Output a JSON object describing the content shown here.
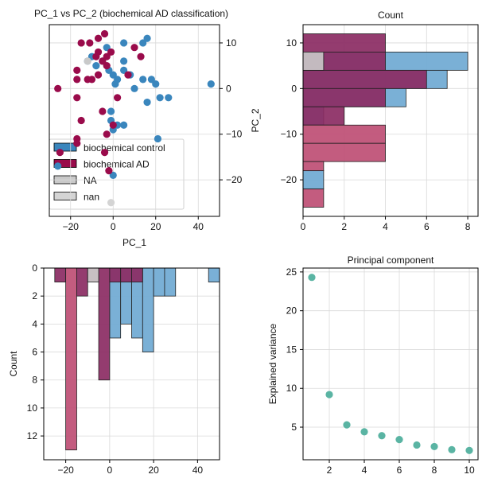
{
  "colors": {
    "control": "#3a86bd",
    "ad": "#9a0b4b",
    "na": "#c9c9c9",
    "nan": "#d4d4d4",
    "control_hist": "#6fa9d2",
    "ad_hist": "#be4e74",
    "ad_hist_dark": "#8b2b63",
    "variance": "#5ab4a3"
  },
  "chart_data": [
    {
      "id": "scatter",
      "type": "scatter",
      "title": "PC_1 vs PC_2 (biochemical AD classification)",
      "xlabel": "PC_1",
      "ylabel": "PC_2",
      "xlim": [
        -30,
        50
      ],
      "ylim": [
        -28,
        14
      ],
      "xticks": [
        -20,
        0,
        20,
        40
      ],
      "yticks": [
        10,
        0,
        -10,
        -20
      ],
      "legend": [
        "biochemical control",
        "biochemical AD",
        "NA",
        "nan"
      ],
      "series": [
        {
          "name": "biochemical control",
          "points": [
            [
              -12,
              6
            ],
            [
              -10,
              7
            ],
            [
              -8,
              5
            ],
            [
              -5,
              6
            ],
            [
              -3,
              9
            ],
            [
              -2,
              4
            ],
            [
              0,
              3
            ],
            [
              1,
              1
            ],
            [
              2,
              2
            ],
            [
              5,
              6
            ],
            [
              5,
              4
            ],
            [
              5,
              10
            ],
            [
              8,
              3
            ],
            [
              10,
              0
            ],
            [
              14,
              10
            ],
            [
              16,
              11
            ],
            [
              14,
              2
            ],
            [
              16,
              -3
            ],
            [
              18,
              2
            ],
            [
              20,
              1
            ],
            [
              26,
              -2
            ],
            [
              22,
              -2
            ],
            [
              -1,
              -5
            ],
            [
              -1,
              -7
            ],
            [
              0,
              -9
            ],
            [
              2,
              -8
            ],
            [
              5,
              -8
            ],
            [
              21,
              -11
            ],
            [
              46,
              1
            ],
            [
              -26,
              -17
            ],
            [
              0,
              -19
            ]
          ]
        },
        {
          "name": "biochemical AD",
          "points": [
            [
              -15,
              10
            ],
            [
              -11,
              10
            ],
            [
              -7,
              11
            ],
            [
              -4,
              12
            ],
            [
              -1,
              8
            ],
            [
              -3,
              7
            ],
            [
              -7,
              8
            ],
            [
              -8,
              7
            ],
            [
              -3,
              5
            ],
            [
              -5,
              6
            ],
            [
              -7,
              3
            ],
            [
              -10,
              2
            ],
            [
              -12,
              2
            ],
            [
              -17,
              4
            ],
            [
              -17,
              2
            ],
            [
              -17,
              -2
            ],
            [
              -15,
              -7
            ],
            [
              -17,
              -11
            ],
            [
              -17,
              -12
            ],
            [
              -26,
              0
            ],
            [
              -25,
              -14
            ],
            [
              -5,
              -5
            ],
            [
              -3,
              -10
            ],
            [
              -4,
              -14
            ],
            [
              0,
              -8
            ],
            [
              2,
              -2
            ],
            [
              7,
              3
            ],
            [
              10,
              9
            ],
            [
              13,
              7
            ],
            [
              -2,
              -18
            ]
          ]
        },
        {
          "name": "NA",
          "points": [
            [
              -12,
              6
            ]
          ]
        },
        {
          "name": "nan",
          "points": [
            [
              -1,
              -25
            ]
          ]
        }
      ]
    },
    {
      "id": "hist_pc2",
      "type": "bar",
      "title": "Count",
      "orientation": "horizontal",
      "xlabel": "",
      "ylabel": "",
      "xlim": [
        0,
        8.5
      ],
      "ylim": [
        -28,
        14
      ],
      "xticks": [
        0,
        2,
        4,
        6,
        8
      ],
      "yticks": [
        10,
        0,
        -10,
        -20
      ],
      "series": [
        {
          "name": "biochemical control",
          "bins": [
            [
              4,
              8,
              8
            ],
            [
              0,
              4,
              7
            ],
            [
              -4,
              0,
              5
            ],
            [
              -8,
              -4,
              1
            ],
            [
              -22,
              -18,
              1
            ]
          ]
        },
        {
          "name": "biochemical AD",
          "bins": [
            [
              8,
              12,
              4
            ],
            [
              4,
              8,
              4
            ],
            [
              0,
              4,
              6
            ],
            [
              -4,
              0,
              4
            ],
            [
              -8,
              -4,
              2
            ],
            [
              -12,
              -8,
              4
            ],
            [
              -16,
              -12,
              4
            ],
            [
              -18,
              -16,
              1
            ],
            [
              -26,
              -22,
              1
            ]
          ]
        },
        {
          "name": "NA",
          "bins": [
            [
              4,
              8,
              1
            ]
          ]
        }
      ]
    },
    {
      "id": "hist_pc1",
      "type": "bar",
      "title": "",
      "orientation": "vertical-inverted",
      "xlabel": "",
      "ylabel": "Count",
      "xlim": [
        -30,
        50
      ],
      "ylim": [
        0,
        13.7
      ],
      "xticks": [
        -20,
        0,
        20,
        40
      ],
      "yticks": [
        0,
        2,
        4,
        6,
        8,
        10,
        12
      ],
      "series": [
        {
          "name": "biochemical control",
          "bins": [
            [
              0,
              5,
              5
            ],
            [
              5,
              10,
              4
            ],
            [
              10,
              15,
              5
            ],
            [
              15,
              20,
              6
            ],
            [
              20,
              25,
              2
            ],
            [
              25,
              30,
              2
            ],
            [
              30,
              35,
              0
            ],
            [
              35,
              40,
              0
            ],
            [
              40,
              45,
              0
            ],
            [
              45,
              50,
              1
            ]
          ]
        },
        {
          "name": "biochemical AD",
          "bins": [
            [
              -25,
              -20,
              1
            ],
            [
              -20,
              -15,
              13
            ],
            [
              -15,
              -10,
              2
            ],
            [
              -10,
              -5,
              1
            ],
            [
              -5,
              0,
              8
            ],
            [
              0,
              5,
              1
            ],
            [
              5,
              10,
              1
            ],
            [
              10,
              15,
              1
            ]
          ]
        },
        {
          "name": "NA",
          "bins": [
            [
              -10,
              -5,
              1
            ]
          ]
        }
      ]
    },
    {
      "id": "variance",
      "type": "scatter",
      "title": "Principal component",
      "xlabel": "",
      "ylabel": "Explained variance",
      "xlim": [
        0.5,
        10.5
      ],
      "ylim": [
        0.8,
        25.5
      ],
      "xticks": [
        2,
        4,
        6,
        8,
        10
      ],
      "yticks": [
        5,
        10,
        15,
        20,
        25
      ],
      "x": [
        1,
        2,
        3,
        4,
        5,
        6,
        7,
        8,
        9,
        10
      ],
      "y": [
        24.3,
        9.2,
        5.3,
        4.4,
        3.9,
        3.4,
        2.7,
        2.5,
        2.1,
        2.0
      ]
    }
  ]
}
